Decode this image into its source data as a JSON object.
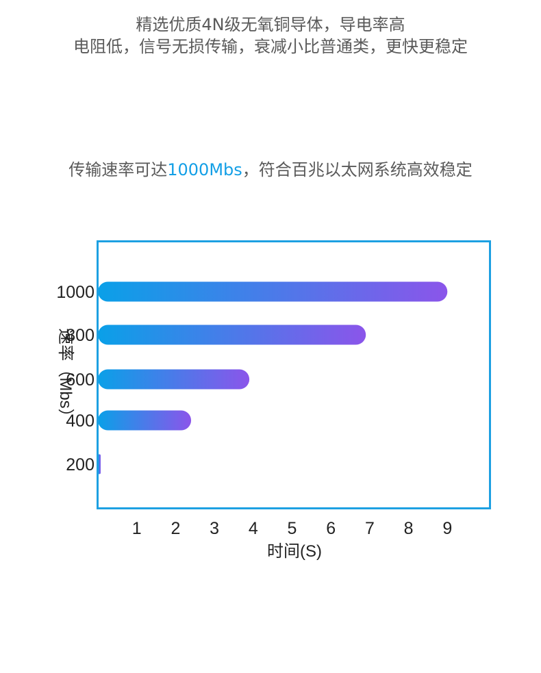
{
  "intro": {
    "line1": "精选优质4N级无氧铜导体，导电率高",
    "line2": "电阻低，信号无损传输，衰减小比普通类，更快更稳定"
  },
  "headline": {
    "prefix": "传输速率可达",
    "highlight": "1000Mbs",
    "suffix": "，符合百兆以太网系统高效稳定"
  },
  "colors": {
    "accent": "#139fe6",
    "frame": "#1da0e2",
    "bar_start": "#0aa0e8",
    "bar_end": "#8b55ea",
    "text": "#222222"
  },
  "chart_data": {
    "type": "bar",
    "orientation": "horizontal",
    "xlabel": "时间(S)",
    "ylabel": "速率（Mbs）",
    "xticks": [
      1,
      2,
      3,
      4,
      5,
      6,
      7,
      8,
      9
    ],
    "xlim": [
      0,
      10
    ],
    "categories": [
      "1000",
      "800",
      "600",
      "400",
      "200"
    ],
    "values": [
      9,
      6.9,
      3.9,
      2.4,
      0.05
    ],
    "grid": false,
    "legend": "none"
  }
}
